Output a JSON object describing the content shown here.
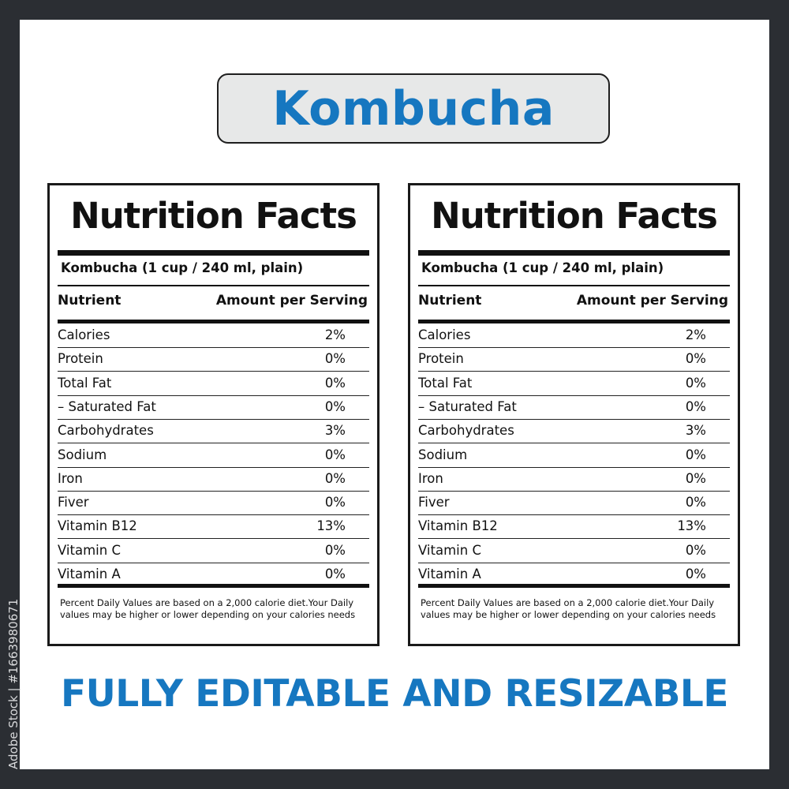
{
  "watermark": "Adobe Stock | #1663980671",
  "title": "Kombucha",
  "label": {
    "heading": "Nutrition Facts",
    "serving": "Kombucha (1 cup / 240 ml, plain)",
    "col_nutrient": "Nutrient",
    "col_amount": "Amount per Serving",
    "rows": [
      {
        "name": "Calories",
        "value": "2%"
      },
      {
        "name": "Protein",
        "value": "0%"
      },
      {
        "name": "Total Fat",
        "value": "0%"
      },
      {
        "name": "– Saturated Fat",
        "value": "0%"
      },
      {
        "name": "Carbohydrates",
        "value": "3%"
      },
      {
        "name": "Sodium",
        "value": "0%"
      },
      {
        "name": "Iron",
        "value": "0%"
      },
      {
        "name": "Fiver",
        "value": "0%"
      },
      {
        "name": "Vitamin B12",
        "value": "13%"
      },
      {
        "name": "Vitamin C",
        "value": "0%"
      },
      {
        "name": "Vitamin A",
        "value": "0%"
      }
    ],
    "note": "Percent Daily Values are based on a 2,000 calorie diet.Your Daily values may be higher or lower depending on your calories needs"
  },
  "footer": "FULLY EDITABLE AND RESIZABLE",
  "colors": {
    "accent": "#1677c0",
    "frame": "#2b2e33",
    "title_bg": "#e7e8e8"
  }
}
